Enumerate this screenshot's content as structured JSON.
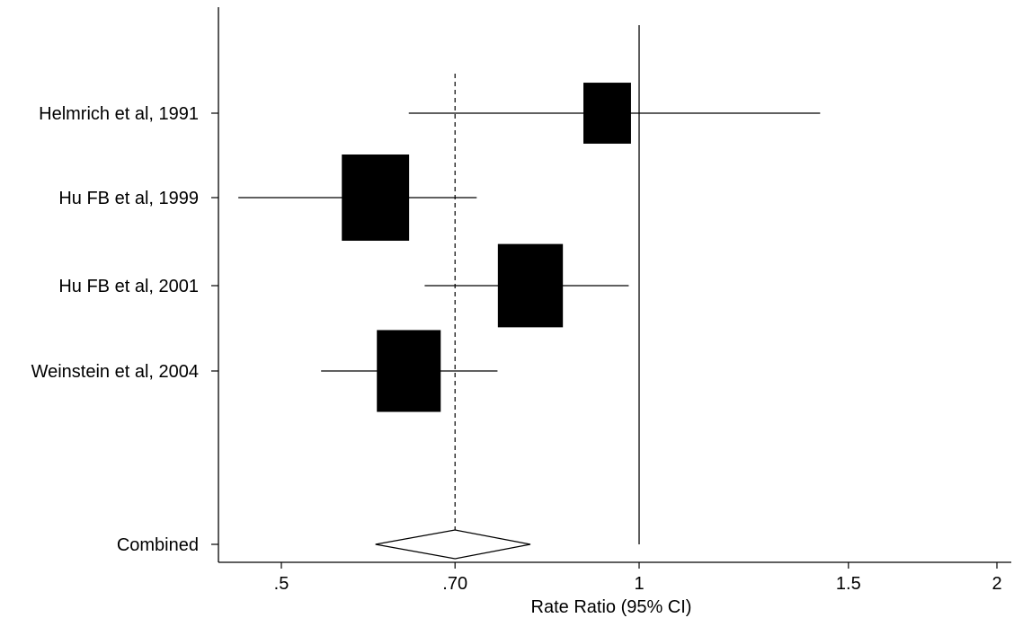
{
  "chart_data": {
    "type": "forest",
    "scale": "log",
    "xlim": [
      0.45,
      2.05
    ],
    "xlabel": "Rate Ratio (95% CI)",
    "xticks": [
      {
        "value": 0.5,
        "label": ".5"
      },
      {
        "value": 0.7,
        "label": ".70"
      },
      {
        "value": 1.0,
        "label": "1"
      },
      {
        "value": 1.5,
        "label": "1.5"
      },
      {
        "value": 2.0,
        "label": "2"
      }
    ],
    "studies": [
      {
        "label": "Helmrich et al, 1991",
        "estimate": 0.94,
        "lower": 0.64,
        "upper": 1.42,
        "weight": 0.15
      },
      {
        "label": "Hu FB et al, 1999",
        "estimate": 0.6,
        "lower": 0.46,
        "upper": 0.73,
        "weight": 0.3
      },
      {
        "label": "Hu FB et al, 2001",
        "estimate": 0.81,
        "lower": 0.66,
        "upper": 0.98,
        "weight": 0.28
      },
      {
        "label": "Weinstein et al, 2004",
        "estimate": 0.64,
        "lower": 0.54,
        "upper": 0.76,
        "weight": 0.27
      }
    ],
    "combined": {
      "label": "Combined",
      "estimate": 0.7,
      "lower": 0.6,
      "upper": 0.81
    },
    "reference_line": 1.0,
    "pooled_line": 0.7,
    "grid": false
  }
}
